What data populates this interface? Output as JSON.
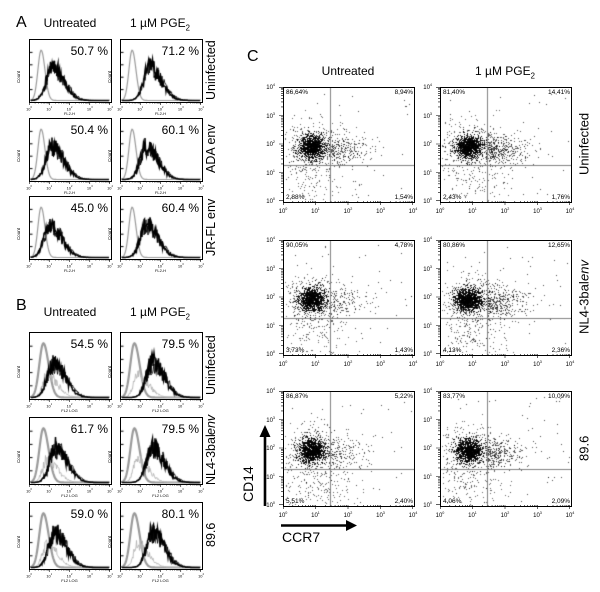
{
  "figure": {
    "background": "#ffffff",
    "ink": "#000000",
    "control_curve_color": "#9a9a9a",
    "quadrant_line_color": "#808080"
  },
  "chart_data": [
    {
      "panel": "A",
      "type": "histogram-grid",
      "columns": [
        {
          "label": "Untreated"
        },
        {
          "label": "1 µM PGE",
          "sub": "2"
        }
      ],
      "xlabel": "FL2-H",
      "ylabel": "Count",
      "x_ticks": [
        {
          "base": "10",
          "exp": "0"
        },
        {
          "base": "10",
          "exp": "1"
        },
        {
          "base": "10",
          "exp": "2"
        },
        {
          "base": "10",
          "exp": "3"
        },
        {
          "base": "10",
          "exp": "4"
        }
      ],
      "rows": [
        {
          "label": "Uninfected",
          "values": [
            "50.7 %",
            "71.2 %"
          ]
        },
        {
          "label": "ADA env",
          "values": [
            "50.4 %",
            "60.1 %"
          ]
        },
        {
          "label": "JR-FL env",
          "values": [
            "45.0 %",
            "60.4 %"
          ]
        }
      ]
    },
    {
      "panel": "B",
      "type": "histogram-grid",
      "columns": [
        {
          "label": "Untreated"
        },
        {
          "label": "1 µM PGE",
          "sub": "2"
        }
      ],
      "xlabel": "FL2 LOG",
      "ylabel": "Count",
      "x_ticks": [
        {
          "base": "10",
          "exp": "0"
        },
        {
          "base": "10",
          "exp": "1"
        },
        {
          "base": "10",
          "exp": "2"
        },
        {
          "base": "10",
          "exp": "3"
        },
        {
          "base": "10",
          "exp": "4"
        }
      ],
      "rows": [
        {
          "label": "Uninfected",
          "values": [
            "54.5 %",
            "79.5 %"
          ]
        },
        {
          "label": "NL4-3balenv",
          "label_main": "NL4-3bal",
          "label_italic": "env",
          "values": [
            "61.7 %",
            "79.5 %"
          ]
        },
        {
          "label": "89.6",
          "values": [
            "59.0 %",
            "80.1 %"
          ]
        }
      ]
    },
    {
      "panel": "C",
      "type": "scatter-grid",
      "columns": [
        {
          "label": "Untreated"
        },
        {
          "label": "1 µM PGE",
          "sub": "2"
        }
      ],
      "xlabel": "CCR7",
      "ylabel": "CD14",
      "x_ticks": [
        {
          "base": "10",
          "exp": "0"
        },
        {
          "base": "10",
          "exp": "1"
        },
        {
          "base": "10",
          "exp": "2"
        },
        {
          "base": "10",
          "exp": "3"
        },
        {
          "base": "10",
          "exp": "4"
        }
      ],
      "y_ticks": [
        {
          "base": "10",
          "exp": "0"
        },
        {
          "base": "10",
          "exp": "1"
        },
        {
          "base": "10",
          "exp": "2"
        },
        {
          "base": "10",
          "exp": "3"
        },
        {
          "base": "10",
          "exp": "4"
        }
      ],
      "rows": [
        {
          "label": "Uninfected",
          "plots": [
            {
              "ul": "86,64%",
              "ur": "8,94%",
              "ll": "2,88%",
              "lr": "1,54%"
            },
            {
              "ul": "81,40%",
              "ur": "14,41%",
              "ll": "2,43%",
              "lr": "1,76%"
            }
          ]
        },
        {
          "label": "NL4-3balenv",
          "label_main": "NL4-3bal",
          "label_italic": "env",
          "plots": [
            {
              "ul": "90,05%",
              "ur": "4,78%",
              "ll": "3,73%",
              "lr": "1,43%"
            },
            {
              "ul": "80,86%",
              "ur": "12,65%",
              "ll": "4,13%",
              "lr": "2,36%"
            }
          ]
        },
        {
          "label": "89.6",
          "plots": [
            {
              "ul": "86,87%",
              "ur": "5,22%",
              "ll": "5,51%",
              "lr": "2,40%"
            },
            {
              "ul": "83,77%",
              "ur": "10,09%",
              "ll": "4,06%",
              "lr": "2,09%"
            }
          ]
        }
      ]
    }
  ]
}
